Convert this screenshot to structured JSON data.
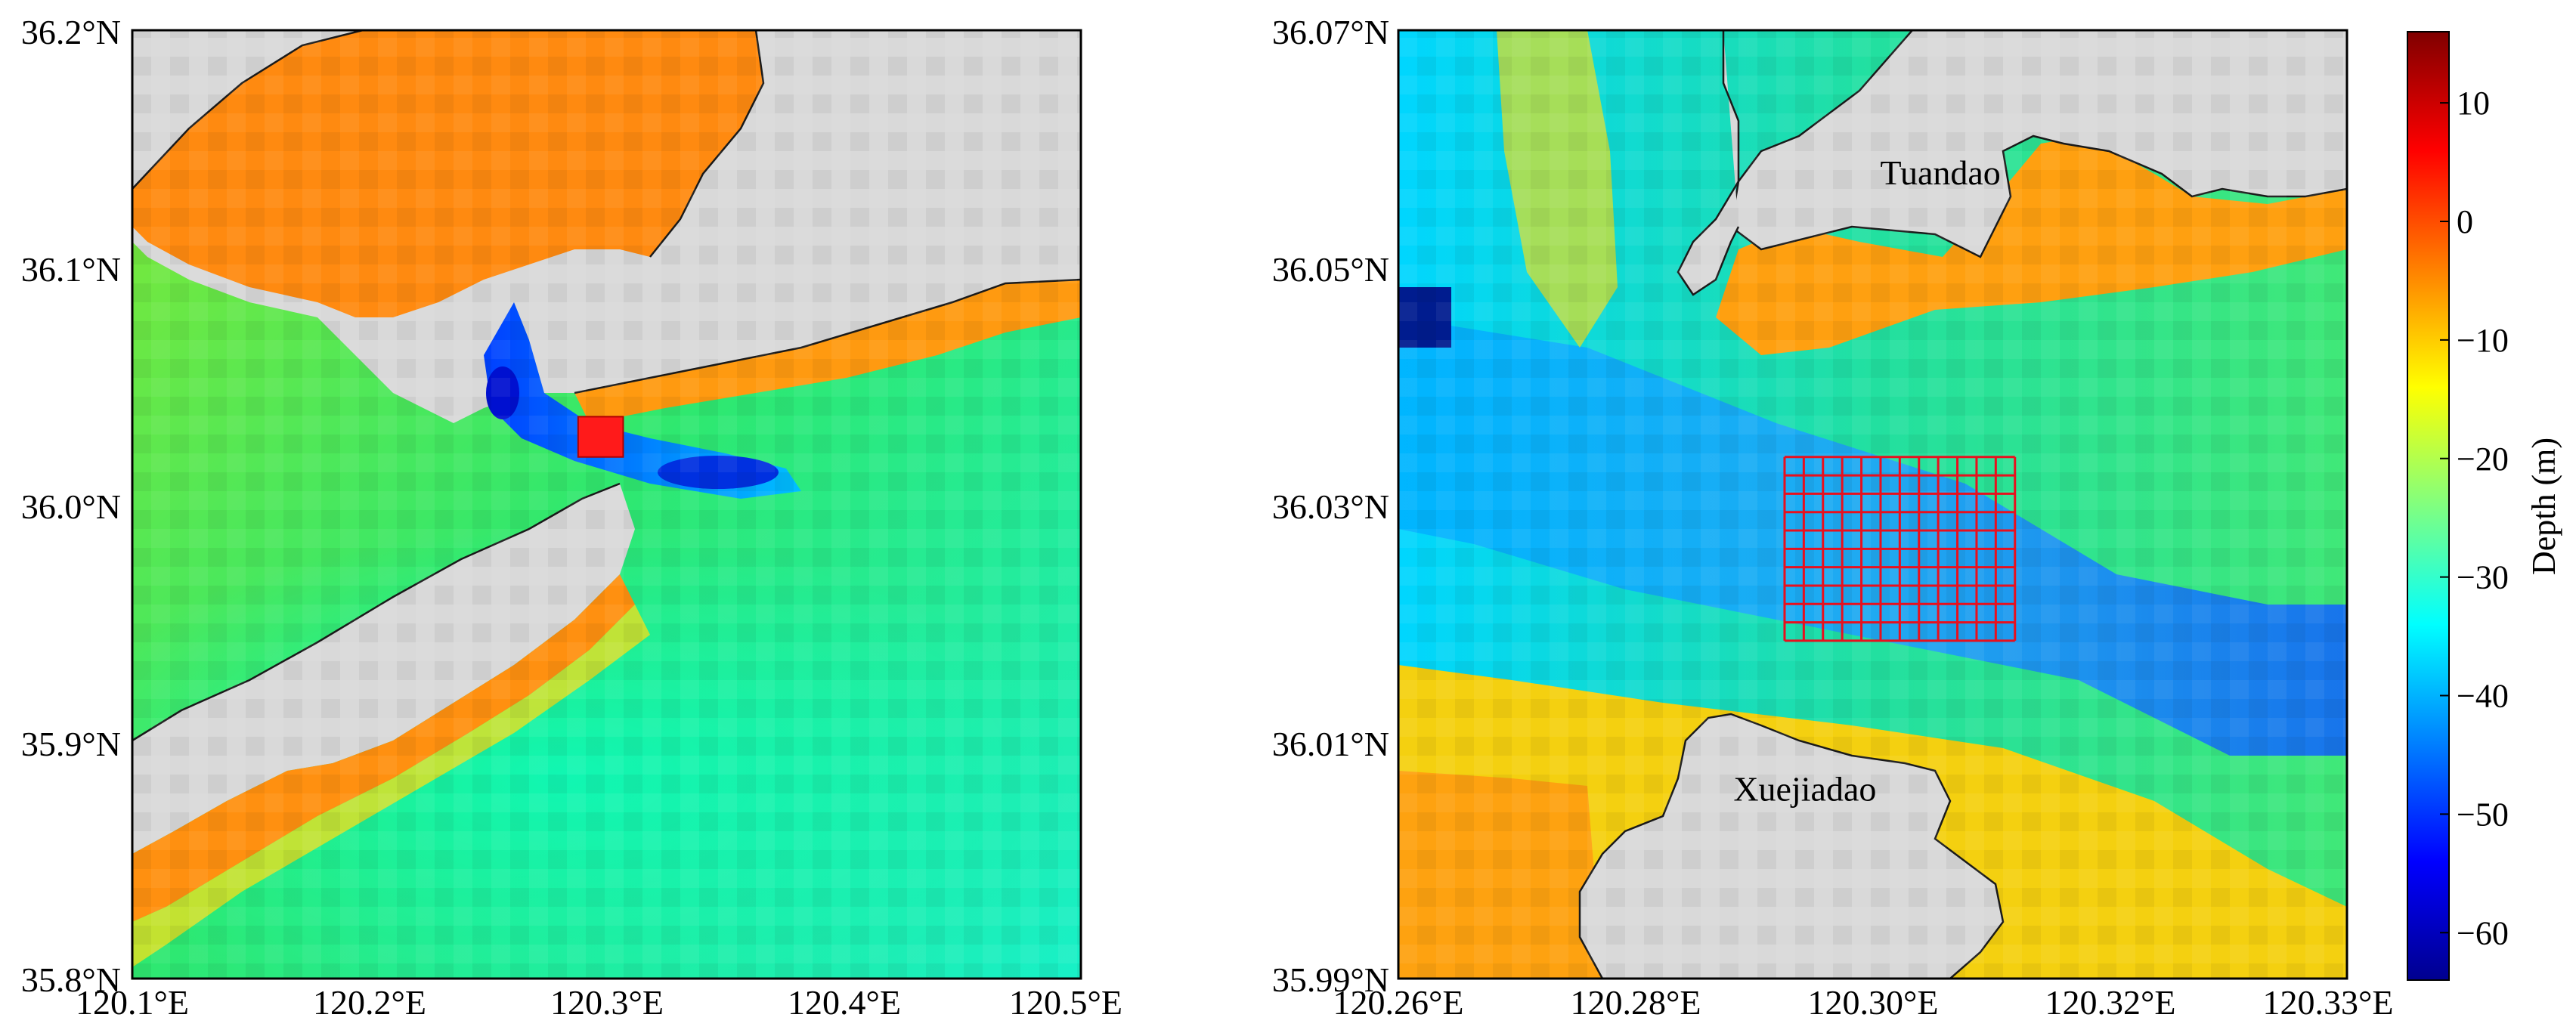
{
  "maps": [
    {
      "id": "overview",
      "lon_ticks": [
        "120.1°E",
        "120.2°E",
        "120.3°E",
        "120.4°E",
        "120.5°E"
      ],
      "lat_ticks": [
        "36.2°N",
        "36.1°N",
        "36.0°N",
        "35.9°N",
        "35.8°N"
      ],
      "lon_range": [
        120.1,
        120.5
      ],
      "lat_range": [
        35.8,
        36.2
      ],
      "highlight_box": {
        "lon": [
          120.288,
          120.307
        ],
        "lat": [
          36.02,
          36.037
        ],
        "color": "#ff1a1a"
      }
    },
    {
      "id": "zoom",
      "lon_ticks": [
        "120.26°E",
        "120.28°E",
        "120.30°E",
        "120.32°E",
        "120.33°E"
      ],
      "lat_ticks": [
        "36.07°N",
        "36.05°N",
        "36.03°N",
        "36.01°N",
        "35.99°N"
      ],
      "lon_range": [
        120.26,
        120.33
      ],
      "lat_range": [
        35.99,
        36.07
      ],
      "places": [
        {
          "name": "Tuandao",
          "lon": 120.3,
          "lat": 36.057
        },
        {
          "name": "Xuejiadao",
          "lon": 120.29,
          "lat": 36.005
        }
      ],
      "grid": {
        "lon": [
          120.2885,
          120.3055
        ],
        "lat": [
          36.0185,
          36.034
        ],
        "cols": 12,
        "rows": 10,
        "color": "#e8101e"
      }
    }
  ],
  "colorbar": {
    "label": "Depth (m)",
    "ticks": [
      "10",
      "0",
      "−10",
      "−20",
      "−30",
      "−40",
      "−50",
      "−60"
    ],
    "tick_values": [
      10,
      0,
      -10,
      -20,
      -30,
      -40,
      -50,
      -60
    ],
    "range": [
      -64,
      16
    ],
    "colors": [
      "#00008f",
      "#0000ff",
      "#0080ff",
      "#00ffff",
      "#80ff80",
      "#ffff00",
      "#ff8000",
      "#ff0000",
      "#800000"
    ]
  },
  "colors": {
    "land": "#d9d9d9",
    "coast": "#1a1a1a",
    "frame": "#000000"
  }
}
